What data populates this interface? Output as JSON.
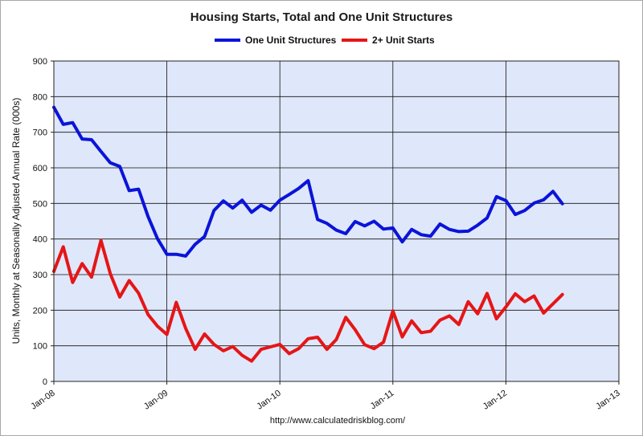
{
  "chart_data": {
    "type": "line",
    "title": "Housing Starts, Total and One Unit Structures",
    "xlabel": "",
    "ylabel": "Units, Monthly at Seasonally Adjusted Annual Rate (000s)",
    "source": "http://www.calculatedriskblog.com/",
    "x_ticks": [
      "Jan-08",
      "Jan-09",
      "Jan-10",
      "Jan-11",
      "Jan-12",
      "Jan-13"
    ],
    "y_ticks": [
      0,
      100,
      200,
      300,
      400,
      500,
      600,
      700,
      800,
      900
    ],
    "ylim": [
      0,
      900
    ],
    "xlim": [
      "2008-01",
      "2013-01"
    ],
    "grid": true,
    "legend_position": "top-center",
    "x": [
      "2008-01",
      "2008-02",
      "2008-03",
      "2008-04",
      "2008-05",
      "2008-06",
      "2008-07",
      "2008-08",
      "2008-09",
      "2008-10",
      "2008-11",
      "2008-12",
      "2009-01",
      "2009-02",
      "2009-03",
      "2009-04",
      "2009-05",
      "2009-06",
      "2009-07",
      "2009-08",
      "2009-09",
      "2009-10",
      "2009-11",
      "2009-12",
      "2010-01",
      "2010-02",
      "2010-03",
      "2010-04",
      "2010-05",
      "2010-06",
      "2010-07",
      "2010-08",
      "2010-09",
      "2010-10",
      "2010-11",
      "2010-12",
      "2011-01",
      "2011-02",
      "2011-03",
      "2011-04",
      "2011-05",
      "2011-06",
      "2011-07",
      "2011-08",
      "2011-09",
      "2011-10",
      "2011-11",
      "2011-12",
      "2012-01",
      "2012-02",
      "2012-03",
      "2012-04",
      "2012-05",
      "2012-06",
      "2012-07"
    ],
    "series": [
      {
        "name": "One Unit Structures",
        "color": "#0a14d8",
        "values": [
          770,
          722,
          727,
          681,
          679,
          646,
          614,
          604,
          536,
          540,
          463,
          401,
          357,
          357,
          352,
          385,
          407,
          480,
          507,
          487,
          509,
          475,
          495,
          481,
          509,
          525,
          542,
          564,
          455,
          444,
          425,
          415,
          449,
          437,
          450,
          428,
          431,
          392,
          427,
          412,
          408,
          442,
          427,
          421,
          422,
          439,
          459,
          519,
          508,
          469,
          480,
          501,
          510,
          534,
          499
        ]
      },
      {
        "name": "2+ Unit Starts",
        "color": "#e51616",
        "values": [
          309,
          378,
          278,
          331,
          293,
          396,
          302,
          237,
          283,
          248,
          188,
          155,
          132,
          222,
          149,
          90,
          133,
          104,
          86,
          98,
          73,
          57,
          90,
          97,
          104,
          78,
          92,
          120,
          124,
          90,
          118,
          180,
          145,
          103,
          92,
          110,
          198,
          125,
          170,
          137,
          141,
          172,
          184,
          160,
          224,
          190,
          247,
          176,
          209,
          246,
          224,
          240,
          192,
          218,
          244
        ]
      }
    ]
  },
  "colors": {
    "plot_background": "#dfe7fb",
    "grid_lines": "#101010"
  }
}
